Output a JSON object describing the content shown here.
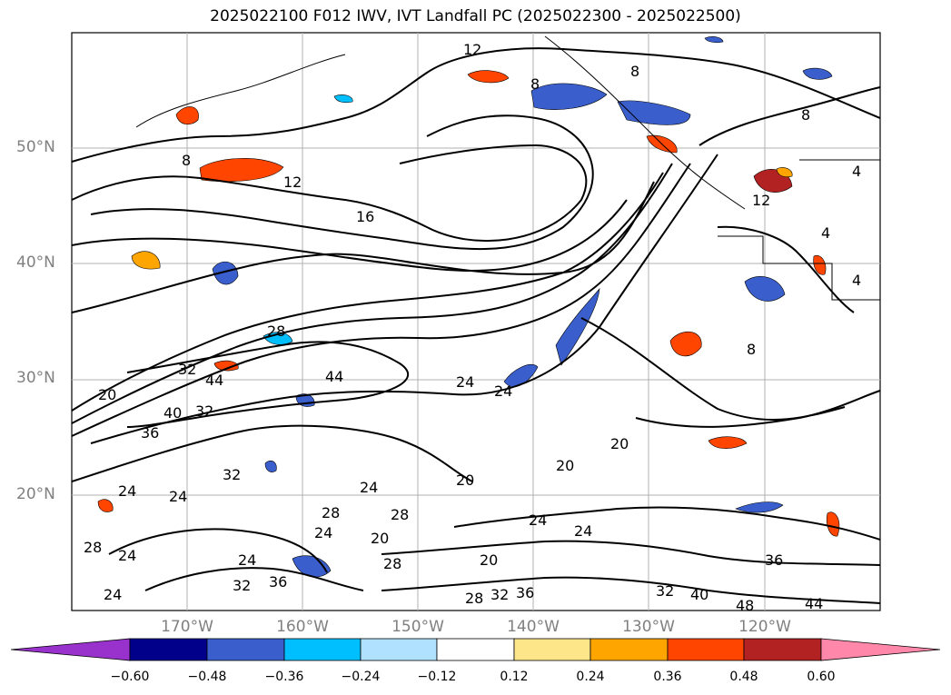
{
  "title": "2025022100 F012 IWV, IVT Landfall PC (2025022300 - 2025022500)",
  "latitude_labels": [
    "50°N",
    "40°N",
    "30°N",
    "20°N"
  ],
  "longitude_labels": [
    "170°W",
    "160°W",
    "150°W",
    "140°W",
    "130°W",
    "120°W"
  ],
  "contour_labels": [
    "12",
    "8",
    "8",
    "8",
    "8",
    "12",
    "16",
    "28",
    "32",
    "44",
    "44",
    "40",
    "36",
    "20",
    "32",
    "24",
    "20",
    "24",
    "24",
    "32",
    "24",
    "28",
    "28",
    "24",
    "24",
    "24",
    "20",
    "28",
    "36",
    "32",
    "28",
    "24",
    "24",
    "20",
    "20",
    "20",
    "24",
    "24",
    "28",
    "32",
    "36",
    "32",
    "40",
    "48",
    "44",
    "36",
    "12",
    "4",
    "4",
    "8",
    "4"
  ],
  "colorbar": {
    "tick_labels": [
      "−0.60",
      "−0.48",
      "−0.36",
      "−0.24",
      "−0.12",
      "0.12",
      "0.24",
      "0.36",
      "0.48",
      "0.60"
    ],
    "colors": [
      "#9932cc",
      "#00008b",
      "#3a5fcd",
      "#00bfff",
      "#b0e2ff",
      "#ffffff",
      "#fde58a",
      "#ffa500",
      "#ff4500",
      "#b22222",
      "#ff88aa"
    ]
  },
  "chart_data": {
    "type": "heatmap",
    "variable_contours": "IWV",
    "variable_fill": "IVT Landfall PC",
    "lat_range": [
      10,
      60
    ],
    "lon_range": [
      -180,
      -110
    ],
    "fill_levels": [
      -0.6,
      -0.48,
      -0.36,
      -0.24,
      -0.12,
      0.12,
      0.24,
      0.36,
      0.48,
      0.6
    ],
    "contour_levels": [
      4,
      8,
      12,
      16,
      20,
      24,
      28,
      32,
      36,
      40,
      44,
      48
    ],
    "grid": true,
    "colorbar_placement": "bottom"
  }
}
